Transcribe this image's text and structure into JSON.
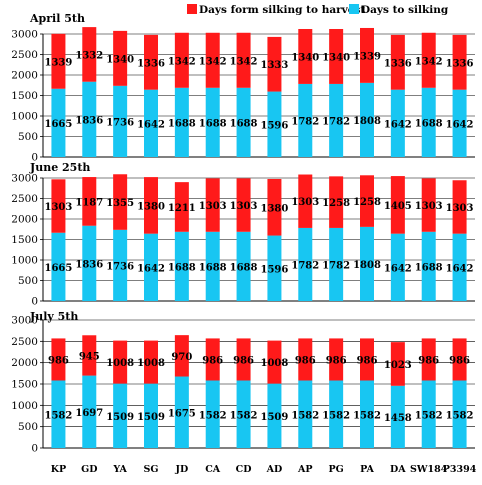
{
  "colors": {
    "harvest": "#ff1a1a",
    "silking": "#18c6f2",
    "axis": "#000000",
    "grid": "#000000"
  },
  "legend": {
    "harvest_label": "Days form silking to harvest",
    "silking_label": "Days to silking",
    "placement": "top-right"
  },
  "chart_data": [
    {
      "type": "bar",
      "stacked": true,
      "title": "April 5th",
      "categories": [
        "KP",
        "GD",
        "YA",
        "SG",
        "JD",
        "CA",
        "CD",
        "AD",
        "AP",
        "PG",
        "PA",
        "DA",
        "SW184",
        "P3394"
      ],
      "ylim": [
        0,
        3000
      ],
      "yticks": [
        0,
        500,
        1000,
        1500,
        2000,
        2500,
        3000
      ],
      "series": [
        {
          "name": "Days to silking",
          "color_key": "silking",
          "values": [
            1665,
            1836,
            1736,
            1642,
            1688,
            1688,
            1688,
            1596,
            1782,
            1782,
            1808,
            1642,
            1688,
            1642
          ]
        },
        {
          "name": "Days form silking to harvest",
          "color_key": "harvest",
          "values": [
            1339,
            1332,
            1340,
            1336,
            1342,
            1342,
            1342,
            1333,
            1340,
            1340,
            1339,
            1336,
            1342,
            1336
          ]
        }
      ]
    },
    {
      "type": "bar",
      "stacked": true,
      "title": "June 25th",
      "categories": [
        "KP",
        "GD",
        "YA",
        "SG",
        "JD",
        "CA",
        "CD",
        "AD",
        "AP",
        "PG",
        "PA",
        "DA",
        "SW184",
        "P3394"
      ],
      "ylim": [
        0,
        3000
      ],
      "yticks": [
        0,
        500,
        1000,
        1500,
        2000,
        2500,
        3000
      ],
      "series": [
        {
          "name": "Days to silking",
          "color_key": "silking",
          "values": [
            1665,
            1836,
            1736,
            1642,
            1688,
            1688,
            1688,
            1596,
            1782,
            1782,
            1808,
            1642,
            1688,
            1642
          ]
        },
        {
          "name": "Days form silking to harvest",
          "color_key": "harvest",
          "values": [
            1303,
            1187,
            1355,
            1380,
            1211,
            1303,
            1303,
            1380,
            1303,
            1258,
            1258,
            1405,
            1303,
            1303
          ]
        }
      ]
    },
    {
      "type": "bar",
      "stacked": true,
      "title": "July 5th",
      "categories": [
        "KP",
        "GD",
        "YA",
        "SG",
        "JD",
        "CA",
        "CD",
        "AD",
        "AP",
        "PG",
        "PA",
        "DA",
        "SW184",
        "P3394"
      ],
      "ylim": [
        0,
        3000
      ],
      "yticks": [
        0,
        500,
        1000,
        1500,
        2000,
        2500,
        3000
      ],
      "series": [
        {
          "name": "Days to silking",
          "color_key": "silking",
          "values": [
            1582,
            1697,
            1509,
            1509,
            1675,
            1582,
            1582,
            1509,
            1582,
            1582,
            1582,
            1458,
            1582,
            1582
          ]
        },
        {
          "name": "Days form silking to harvest",
          "color_key": "harvest",
          "values": [
            986,
            945,
            1008,
            1008,
            970,
            986,
            986,
            1008,
            986,
            986,
            986,
            1023,
            986,
            986
          ]
        }
      ]
    }
  ]
}
